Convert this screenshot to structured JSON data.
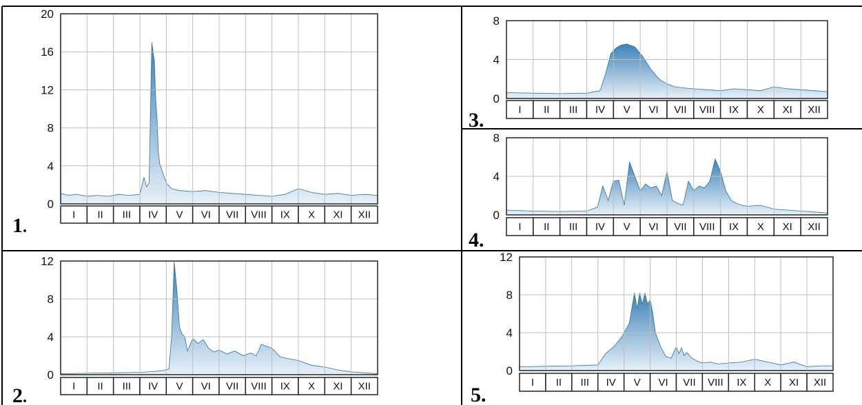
{
  "chart_data": [
    {
      "type": "area",
      "panel_label": "1",
      "panel_label_punct": ".",
      "categories": [
        "I",
        "II",
        "III",
        "IV",
        "V",
        "VI",
        "VII",
        "VIII",
        "IX",
        "X",
        "XI",
        "XII"
      ],
      "ylim": [
        0,
        20
      ],
      "yticks": [
        0,
        4,
        8,
        12,
        16,
        20
      ],
      "x": [
        0,
        0.3,
        0.6,
        1.0,
        1.4,
        1.8,
        2.2,
        2.6,
        3.0,
        3.15,
        3.25,
        3.35,
        3.45,
        3.55,
        3.6,
        3.65,
        3.7,
        3.75,
        3.8,
        3.9,
        4.0,
        4.2,
        4.5,
        5.0,
        5.5,
        6.0,
        6.5,
        7.0,
        7.5,
        8.0,
        8.5,
        9.0,
        9.5,
        10.0,
        10.5,
        11.0,
        11.5,
        12.0
      ],
      "values": [
        1.1,
        0.9,
        1.0,
        0.8,
        0.9,
        0.8,
        1.0,
        0.9,
        1.0,
        2.8,
        1.8,
        2.2,
        17.0,
        15.0,
        11.0,
        9.0,
        5.5,
        4.2,
        3.8,
        3.0,
        2.2,
        1.6,
        1.4,
        1.3,
        1.4,
        1.2,
        1.1,
        1.0,
        0.9,
        0.8,
        1.0,
        1.6,
        1.2,
        1.0,
        1.1,
        0.9,
        1.0,
        0.9
      ]
    },
    {
      "type": "area",
      "panel_label": "2",
      "panel_label_punct": ".",
      "categories": [
        "I",
        "II",
        "III",
        "IV",
        "V",
        "VI",
        "VII",
        "VIII",
        "IX",
        "X",
        "XI",
        "XII"
      ],
      "ylim": [
        0,
        12
      ],
      "yticks": [
        0,
        4,
        8,
        12
      ],
      "x": [
        0,
        1.0,
        2.0,
        3.0,
        3.8,
        4.1,
        4.2,
        4.3,
        4.4,
        4.5,
        4.6,
        4.7,
        4.8,
        5.0,
        5.2,
        5.4,
        5.6,
        5.8,
        6.0,
        6.3,
        6.6,
        6.9,
        7.2,
        7.4,
        7.6,
        7.8,
        8.0,
        8.3,
        8.6,
        9.0,
        9.5,
        10.0,
        10.5,
        11.0,
        11.5,
        12.0
      ],
      "values": [
        0.1,
        0.15,
        0.2,
        0.25,
        0.4,
        0.6,
        4.0,
        11.9,
        9.0,
        5.0,
        4.3,
        4.0,
        2.5,
        3.8,
        3.3,
        3.7,
        2.8,
        2.4,
        2.6,
        2.2,
        2.5,
        2.0,
        2.3,
        2.0,
        3.2,
        3.0,
        2.8,
        1.9,
        1.7,
        1.5,
        1.0,
        0.8,
        0.5,
        0.3,
        0.2,
        0.1
      ]
    },
    {
      "type": "area",
      "panel_label": "3",
      "panel_label_punct": ".",
      "categories": [
        "I",
        "II",
        "III",
        "IV",
        "V",
        "VI",
        "VII",
        "VIII",
        "IX",
        "X",
        "XI",
        "XII"
      ],
      "ylim": [
        0,
        8
      ],
      "yticks": [
        0,
        4,
        8
      ],
      "x": [
        0,
        1.0,
        2.0,
        3.0,
        3.5,
        3.7,
        3.9,
        4.1,
        4.3,
        4.5,
        4.8,
        5.1,
        5.4,
        5.7,
        6.0,
        6.3,
        6.6,
        7.0,
        7.5,
        8.0,
        8.5,
        9.0,
        9.5,
        10.0,
        10.5,
        11.0,
        11.5,
        12.0
      ],
      "values": [
        0.6,
        0.55,
        0.5,
        0.55,
        0.8,
        2.5,
        4.6,
        5.2,
        5.5,
        5.6,
        5.3,
        4.3,
        3.0,
        2.0,
        1.5,
        1.2,
        1.1,
        1.0,
        0.9,
        0.8,
        1.0,
        0.9,
        0.8,
        1.2,
        1.0,
        0.9,
        0.8,
        0.7
      ]
    },
    {
      "type": "area",
      "panel_label": "4",
      "panel_label_punct": ".",
      "categories": [
        "I",
        "II",
        "III",
        "IV",
        "V",
        "VI",
        "VII",
        "VIII",
        "IX",
        "X",
        "XI",
        "XII"
      ],
      "ylim": [
        0,
        8
      ],
      "yticks": [
        0,
        4,
        8
      ],
      "x": [
        0,
        1.0,
        2.0,
        3.0,
        3.4,
        3.6,
        3.8,
        4.0,
        4.2,
        4.4,
        4.6,
        4.8,
        5.0,
        5.2,
        5.4,
        5.6,
        5.8,
        6.0,
        6.2,
        6.4,
        6.6,
        6.8,
        7.0,
        7.2,
        7.4,
        7.6,
        7.8,
        8.0,
        8.2,
        8.4,
        8.6,
        8.8,
        9.0,
        9.5,
        10.0,
        10.5,
        11.0,
        11.5,
        12.0
      ],
      "values": [
        0.5,
        0.4,
        0.35,
        0.4,
        0.8,
        3.0,
        1.5,
        3.5,
        3.6,
        1.0,
        5.5,
        4.0,
        2.5,
        3.2,
        2.8,
        3.0,
        2.0,
        4.5,
        1.5,
        1.2,
        1.0,
        3.5,
        2.5,
        3.0,
        2.8,
        3.5,
        5.8,
        4.5,
        2.5,
        1.5,
        1.2,
        1.0,
        0.9,
        1.0,
        0.6,
        0.5,
        0.4,
        0.3,
        0.2
      ]
    },
    {
      "type": "area",
      "panel_label": "5",
      "panel_label_punct": ".",
      "categories": [
        "I",
        "II",
        "III",
        "IV",
        "V",
        "VI",
        "VII",
        "VIII",
        "IX",
        "X",
        "XI",
        "XII"
      ],
      "ylim": [
        0,
        12
      ],
      "yticks": [
        0,
        4,
        8,
        12
      ],
      "x": [
        0,
        1.0,
        2.0,
        3.0,
        3.3,
        3.6,
        3.9,
        4.2,
        4.4,
        4.5,
        4.6,
        4.7,
        4.8,
        4.9,
        5.0,
        5.1,
        5.2,
        5.4,
        5.6,
        5.8,
        6.0,
        6.1,
        6.2,
        6.3,
        6.4,
        6.6,
        6.8,
        7.0,
        7.3,
        7.6,
        8.0,
        8.5,
        9.0,
        9.5,
        10.0,
        10.5,
        11.0,
        11.5,
        12.0
      ],
      "values": [
        0.4,
        0.45,
        0.5,
        0.6,
        1.8,
        2.5,
        3.5,
        5.0,
        8.2,
        6.5,
        8.2,
        7.0,
        8.2,
        7.0,
        7.5,
        6.0,
        4.0,
        2.5,
        1.5,
        1.3,
        2.5,
        1.8,
        2.4,
        1.6,
        1.9,
        1.3,
        1.0,
        0.8,
        0.9,
        0.7,
        0.8,
        0.9,
        1.2,
        0.9,
        0.6,
        0.9,
        0.4,
        0.5,
        0.5
      ]
    }
  ]
}
